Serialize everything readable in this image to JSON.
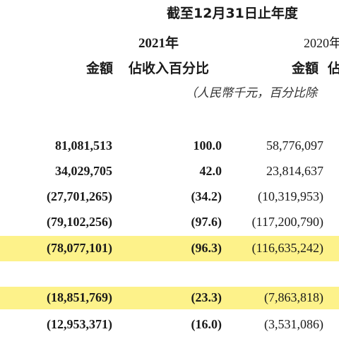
{
  "header": {
    "period": "截至12月31日止年度",
    "year_2021": "2021年",
    "year_2020": "2020年",
    "col_amount_2021": "金額",
    "col_pct_2021": "佔收入百分比",
    "col_amount_2020": "金額",
    "col_pct_2020": "佔",
    "unit_note": "（人民幣千元，百分比除"
  },
  "rows": [
    {
      "amount_2021": "81,081,513",
      "pct_2021": "100.0",
      "amount_2020": "58,776,097",
      "highlight": false
    },
    {
      "amount_2021": "34,029,705",
      "pct_2021": "42.0",
      "amount_2020": "23,814,637",
      "highlight": false
    },
    {
      "amount_2021": "(27,701,265)",
      "pct_2021": "(34.2)",
      "amount_2020": "(10,319,953)",
      "highlight": false
    },
    {
      "amount_2021": "(79,102,256)",
      "pct_2021": "(97.6)",
      "amount_2020": "(117,200,790)",
      "highlight": false
    },
    {
      "amount_2021": "(78,077,101)",
      "pct_2021": "(96.3)",
      "amount_2020": "(116,635,242)",
      "highlight": true
    },
    {
      "amount_2021": "(18,851,769)",
      "pct_2021": "(23.3)",
      "amount_2020": "(7,863,818)",
      "highlight": true
    },
    {
      "amount_2021": "(12,953,371)",
      "pct_2021": "(16.0)",
      "amount_2020": "(3,531,086)",
      "highlight": false
    }
  ],
  "colors": {
    "highlight": "#fdf28a",
    "text": "#1a1a1a"
  }
}
